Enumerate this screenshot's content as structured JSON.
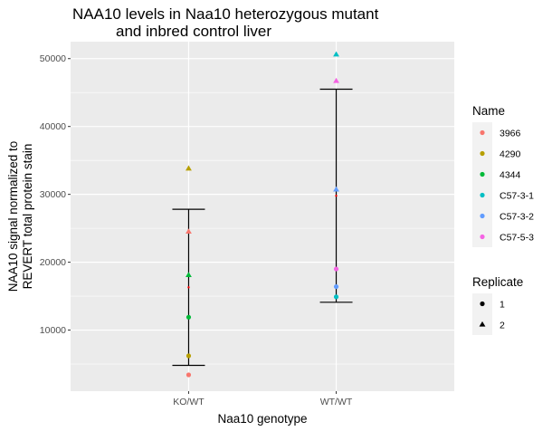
{
  "chart_data": {
    "type": "scatter",
    "title_lines": [
      "NAA10 levels in Naa10 heterozygous mutant",
      "and inbred control liver"
    ],
    "xlabel": "Naa10 genotype",
    "ylabel_lines": [
      "NAA10 signal normalized to",
      "REVERT total protein stain"
    ],
    "categories": [
      "KO/WT",
      "WT/WT"
    ],
    "ylim": [
      1000,
      52500
    ],
    "yticks": [
      10000,
      20000,
      30000,
      40000,
      50000
    ],
    "ytick_labels": [
      "10000",
      "20000",
      "30000",
      "40000",
      "50000"
    ],
    "grid": true,
    "legend_position": "right",
    "name_legend": {
      "title": "Name",
      "entries": [
        {
          "label": "3966",
          "color": "#F8766D"
        },
        {
          "label": "4290",
          "color": "#B79F00"
        },
        {
          "label": "4344",
          "color": "#00BA38"
        },
        {
          "label": "C57-3-1",
          "color": "#00BFC4"
        },
        {
          "label": "C57-3-2",
          "color": "#619CFF"
        },
        {
          "label": "C57-5-3",
          "color": "#F564E3"
        }
      ]
    },
    "replicate_legend": {
      "title": "Replicate",
      "entries": [
        {
          "label": "1",
          "shape": "circle"
        },
        {
          "label": "2",
          "shape": "triangle"
        }
      ]
    },
    "points": [
      {
        "x": "KO/WT",
        "name": "3966",
        "replicate": "1",
        "y": 3400
      },
      {
        "x": "KO/WT",
        "name": "3966",
        "replicate": "2",
        "y": 24500
      },
      {
        "x": "KO/WT",
        "name": "4290",
        "replicate": "1",
        "y": 6200
      },
      {
        "x": "KO/WT",
        "name": "4290",
        "replicate": "2",
        "y": 33800
      },
      {
        "x": "KO/WT",
        "name": "4344",
        "replicate": "1",
        "y": 11900
      },
      {
        "x": "KO/WT",
        "name": "4344",
        "replicate": "2",
        "y": 18100
      },
      {
        "x": "WT/WT",
        "name": "C57-3-1",
        "replicate": "1",
        "y": 14900
      },
      {
        "x": "WT/WT",
        "name": "C57-3-1",
        "replicate": "2",
        "y": 50600
      },
      {
        "x": "WT/WT",
        "name": "C57-3-2",
        "replicate": "1",
        "y": 16400
      },
      {
        "x": "WT/WT",
        "name": "C57-3-2",
        "replicate": "2",
        "y": 30700
      },
      {
        "x": "WT/WT",
        "name": "C57-5-3",
        "replicate": "1",
        "y": 19000
      },
      {
        "x": "WT/WT",
        "name": "C57-5-3",
        "replicate": "2",
        "y": 46700
      }
    ],
    "summary": [
      {
        "x": "KO/WT",
        "mean": 16300,
        "lower": 4800,
        "upper": 27800
      },
      {
        "x": "WT/WT",
        "mean": 29800,
        "lower": 14100,
        "upper": 45500
      }
    ],
    "mean_marker_color": "#FF0000"
  }
}
